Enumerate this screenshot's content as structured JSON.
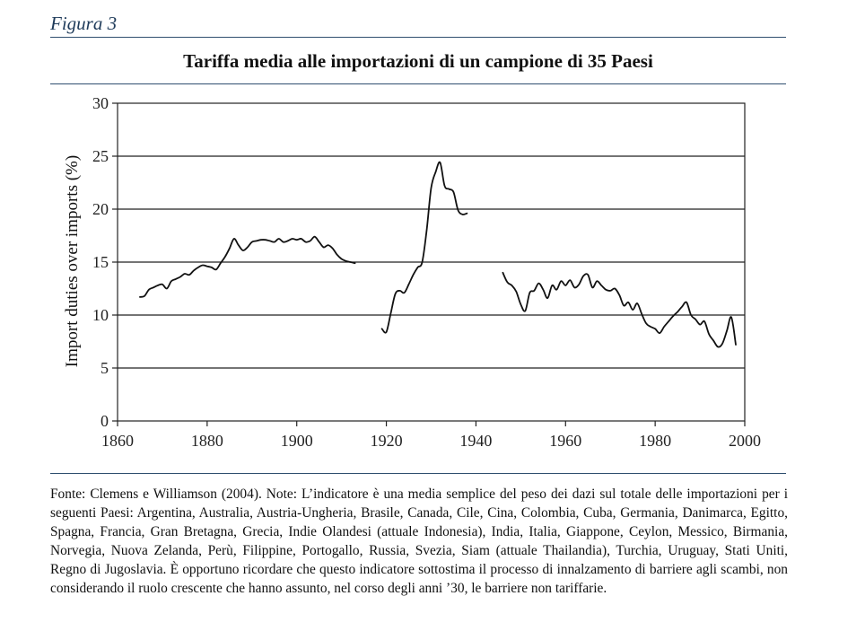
{
  "figure_label": "Figura 3",
  "title": "Tariffa media alle importazioni di un campione di 35 Paesi",
  "note": "Fonte: Clemens e Williamson (2004). Note: L’indicatore è una media semplice del peso dei dazi sul totale delle importazioni per i seguenti Paesi: Argentina, Australia, Austria-Ungheria, Brasile, Canada, Cile, Cina, Colombia, Cuba, Germania, Danimarca, Egitto, Spagna, Francia, Gran Bretagna, Grecia, Indie Olandesi (attuale Indonesia), India, Italia, Giappone, Ceylon, Messico, Birmania, Norvegia, Nuova Zelanda, Perù, Filippine, Portogallo, Russia, Svezia, Siam (attuale Thailandia), Turchia, Uruguay, Stati Uniti, Regno di Jugoslavia. È opportuno ricordare che questo indicatore sottostima il processo di innalzamento di barriere agli scambi, non considerando il ruolo crescente che hanno assunto, nel corso degli anni ’30, le barriere non tariffarie.",
  "chart_data": {
    "type": "line",
    "title": "Tariffa media alle importazioni di un campione di 35 Paesi",
    "xlabel": "",
    "ylabel": "Import duties over imports (%)",
    "xlim": [
      1860,
      2000
    ],
    "ylim": [
      0,
      30
    ],
    "xticks": [
      1860,
      1880,
      1900,
      1920,
      1940,
      1960,
      1980,
      2000
    ],
    "yticks": [
      0,
      5,
      10,
      15,
      20,
      25,
      30
    ],
    "grid": "horizontal",
    "line_color": "#111111",
    "segments": [
      {
        "name": "1865-1913",
        "x": [
          1865,
          1866,
          1867,
          1868,
          1869,
          1870,
          1871,
          1872,
          1873,
          1874,
          1875,
          1876,
          1877,
          1878,
          1879,
          1880,
          1881,
          1882,
          1883,
          1884,
          1885,
          1886,
          1887,
          1888,
          1889,
          1890,
          1891,
          1892,
          1893,
          1894,
          1895,
          1896,
          1897,
          1898,
          1899,
          1900,
          1901,
          1902,
          1903,
          1904,
          1905,
          1906,
          1907,
          1908,
          1909,
          1910,
          1911,
          1912,
          1913
        ],
        "y": [
          11.7,
          11.8,
          12.4,
          12.6,
          12.8,
          12.9,
          12.5,
          13.2,
          13.4,
          13.6,
          13.9,
          13.8,
          14.2,
          14.5,
          14.7,
          14.6,
          14.5,
          14.3,
          14.9,
          15.5,
          16.3,
          17.2,
          16.6,
          16.1,
          16.4,
          16.9,
          17.0,
          17.1,
          17.1,
          17.0,
          16.9,
          17.2,
          16.9,
          17.0,
          17.2,
          17.1,
          17.2,
          16.9,
          17.0,
          17.4,
          16.9,
          16.4,
          16.6,
          16.3,
          15.7,
          15.3,
          15.1,
          15.0,
          14.9
        ]
      },
      {
        "name": "1919-1938",
        "x": [
          1919,
          1920,
          1921,
          1922,
          1923,
          1924,
          1925,
          1926,
          1927,
          1928,
          1929,
          1930,
          1931,
          1932,
          1933,
          1934,
          1935,
          1936,
          1937,
          1938
        ],
        "y": [
          8.7,
          8.4,
          10.2,
          12.0,
          12.3,
          12.1,
          12.9,
          13.8,
          14.5,
          15.0,
          18.0,
          22.0,
          23.5,
          24.4,
          22.2,
          21.9,
          21.6,
          19.9,
          19.5,
          19.6
        ]
      },
      {
        "name": "1946-1998",
        "x": [
          1946,
          1947,
          1948,
          1949,
          1950,
          1951,
          1952,
          1953,
          1954,
          1955,
          1956,
          1957,
          1958,
          1959,
          1960,
          1961,
          1962,
          1963,
          1964,
          1965,
          1966,
          1967,
          1968,
          1969,
          1970,
          1971,
          1972,
          1973,
          1974,
          1975,
          1976,
          1977,
          1978,
          1979,
          1980,
          1981,
          1982,
          1983,
          1984,
          1985,
          1986,
          1987,
          1988,
          1989,
          1990,
          1991,
          1992,
          1993,
          1994,
          1995,
          1996,
          1997,
          1998
        ],
        "y": [
          14.0,
          13.1,
          12.8,
          12.2,
          11.0,
          10.4,
          12.1,
          12.3,
          13.0,
          12.4,
          11.6,
          12.8,
          12.4,
          13.2,
          12.8,
          13.3,
          12.6,
          12.9,
          13.7,
          13.8,
          12.6,
          13.2,
          12.8,
          12.4,
          12.3,
          12.5,
          11.9,
          10.9,
          11.2,
          10.5,
          11.1,
          10.1,
          9.2,
          8.9,
          8.7,
          8.3,
          8.9,
          9.4,
          9.9,
          10.3,
          10.8,
          11.2,
          10.0,
          9.6,
          9.1,
          9.4,
          8.2,
          7.6,
          7.0,
          7.3,
          8.5,
          9.8,
          7.2
        ]
      }
    ]
  }
}
